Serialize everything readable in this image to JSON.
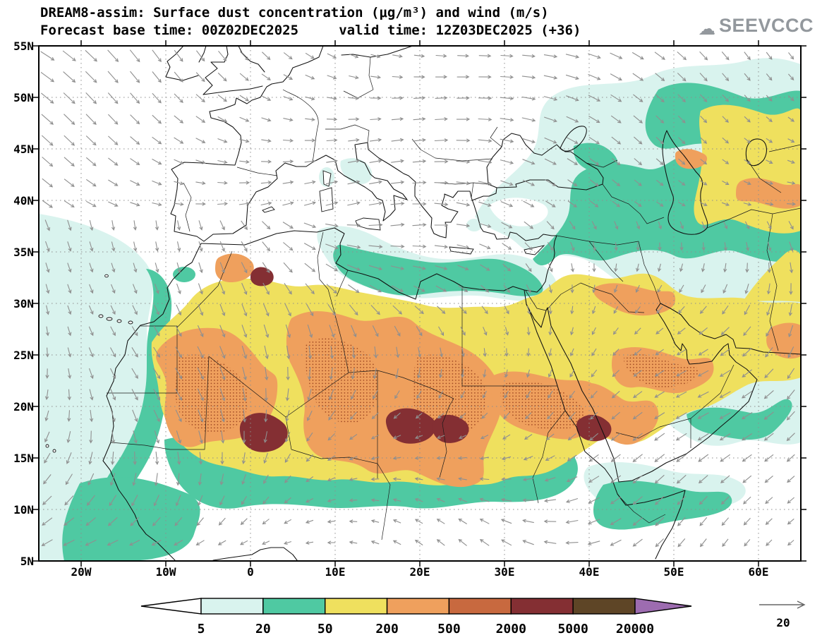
{
  "header": {
    "title_line1": "DREAM8-assim: Surface dust concentration (μg/m³) and wind (m/s)",
    "title_line2": "Forecast base time: 00Z02DEC2025     valid time: 12Z03DEC2025 (+36)",
    "logo_text": "SEEVCCC"
  },
  "map": {
    "lat_labels": [
      "55N",
      "50N",
      "45N",
      "40N",
      "35N",
      "30N",
      "25N",
      "20N",
      "15N",
      "10N",
      "5N"
    ],
    "lon_labels": [
      "20W",
      "10W",
      "0",
      "10E",
      "20E",
      "30E",
      "40E",
      "50E",
      "60E"
    ]
  },
  "legend": {
    "levels": [
      "5",
      "20",
      "50",
      "200",
      "500",
      "2000",
      "5000",
      "20000"
    ],
    "colors": [
      "#ffffff",
      "#d9f3ee",
      "#4fc9a2",
      "#efe05e",
      "#efa05d",
      "#c8693f",
      "#842f33",
      "#5e4526",
      "#9d6cb0"
    ]
  },
  "wind_reference": {
    "label": "20"
  },
  "chart_data": {
    "type": "heatmap",
    "title": "DREAM8-assim: Surface dust concentration (μg/m³) and wind (m/s)",
    "forecast_base_time": "00Z02DEC2025",
    "valid_time": "12Z03DEC2025",
    "forecast_hour": "+36",
    "units": "μg/m³",
    "contour_levels": [
      5,
      20,
      50,
      200,
      500,
      2000,
      5000,
      20000
    ],
    "level_colors": [
      "#ffffff",
      "#d9f3ee",
      "#4fc9a2",
      "#efe05e",
      "#efa05d",
      "#c8693f",
      "#842f33",
      "#5e4526",
      "#9d6cb0"
    ],
    "lon_range_deg": [
      -25,
      65
    ],
    "lat_range_deg": [
      5,
      55
    ],
    "lon_ticks": [
      "20W",
      "10W",
      "0",
      "10E",
      "20E",
      "30E",
      "40E",
      "50E",
      "60E"
    ],
    "lat_ticks": [
      "5N",
      "10N",
      "15N",
      "20N",
      "25N",
      "30N",
      "35N",
      "40N",
      "45N",
      "50N",
      "55N"
    ],
    "wind_reference_ms": 20,
    "grid": "dotted graticule every 5 deg lat / 10 deg lon",
    "features": [
      {
        "region": "Mali / southern Algeria (West Africa)",
        "level_range": "2000-5000"
      },
      {
        "region": "Chad (Bodele depression)",
        "level_range": "2000-5000"
      },
      {
        "region": "Sudan / Red Sea coast",
        "level_range": "2000-5000"
      },
      {
        "region": "Sahara broad band 12N-32N",
        "level_range": "200-2000"
      },
      {
        "region": "Arabian Peninsula interior",
        "level_range": "200-500"
      },
      {
        "region": "Mesopotamia / Iraq",
        "level_range": "200-500"
      },
      {
        "region": "Central Asia east of Caspian",
        "level_range": "50-500"
      },
      {
        "region": "Sahel / coastal fringes / Middle East fringes",
        "level_range": "5-50"
      }
    ]
  }
}
